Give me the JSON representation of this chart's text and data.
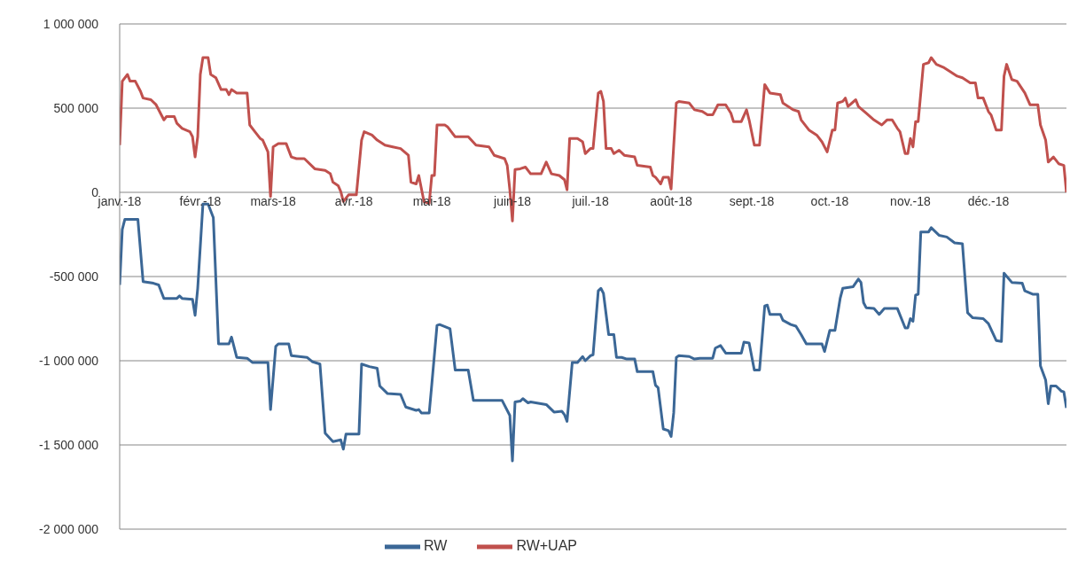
{
  "chart_data": {
    "type": "line",
    "grid": "y",
    "legend": "bottom",
    "marker": "none",
    "line_style": "solid",
    "xlim": [
      "2018-01-01",
      "2018-12-31"
    ],
    "xticks": [
      {
        "value": "2018-01-01",
        "label": "janv.-18"
      },
      {
        "value": "2018-02-01",
        "label": "févr.-18"
      },
      {
        "value": "2018-03-01",
        "label": "mars-18"
      },
      {
        "value": "2018-04-01",
        "label": "avr.-18"
      },
      {
        "value": "2018-05-01",
        "label": "mai-18"
      },
      {
        "value": "2018-06-01",
        "label": "juin-18"
      },
      {
        "value": "2018-07-01",
        "label": "juil.-18"
      },
      {
        "value": "2018-08-01",
        "label": "août-18"
      },
      {
        "value": "2018-09-01",
        "label": "sept.-18"
      },
      {
        "value": "2018-10-01",
        "label": "oct.-18"
      },
      {
        "value": "2018-11-01",
        "label": "nov.-18"
      },
      {
        "value": "2018-12-01",
        "label": "déc.-18"
      }
    ],
    "ylim": [
      -2000000,
      1000000
    ],
    "yticks": [
      {
        "value": -2000000,
        "label": "-2 000 000"
      },
      {
        "value": -1500000,
        "label": "-1 500 000"
      },
      {
        "value": -1000000,
        "label": "-1 000 000"
      },
      {
        "value": -500000,
        "label": "-500 000"
      },
      0,
      {
        "value": 500000,
        "label": "500 000"
      },
      {
        "value": 1000000,
        "label": "1 000 000"
      }
    ],
    "series": [
      {
        "name": "RW",
        "color": "#3b6796",
        "x": [
          "2018-01-01",
          "2018-01-02",
          "2018-01-03",
          "2018-01-08",
          "2018-01-10",
          "2018-01-14",
          "2018-01-16",
          "2018-01-18",
          "2018-01-23",
          "2018-01-24",
          "2018-01-25",
          "2018-01-29",
          "2018-01-30",
          "2018-01-31",
          "2018-02-02",
          "2018-02-04",
          "2018-02-06",
          "2018-02-08",
          "2018-02-12",
          "2018-02-13",
          "2018-02-15",
          "2018-02-19",
          "2018-02-21",
          "2018-02-27",
          "2018-02-28",
          "2018-03-02",
          "2018-03-03",
          "2018-03-07",
          "2018-03-08",
          "2018-03-14",
          "2018-03-16",
          "2018-03-19",
          "2018-03-21",
          "2018-03-24",
          "2018-03-27",
          "2018-03-28",
          "2018-03-29",
          "2018-04-03",
          "2018-04-04",
          "2018-04-07",
          "2018-04-10",
          "2018-04-11",
          "2018-04-14",
          "2018-04-19",
          "2018-04-21",
          "2018-04-25",
          "2018-04-26",
          "2018-04-27",
          "2018-04-30",
          "2018-05-01",
          "2018-05-03",
          "2018-05-04",
          "2018-05-08",
          "2018-05-10",
          "2018-05-15",
          "2018-05-17",
          "2018-05-28",
          "2018-05-31",
          "2018-06-01",
          "2018-06-02",
          "2018-06-04",
          "2018-06-05",
          "2018-06-07",
          "2018-06-08",
          "2018-06-14",
          "2018-06-17",
          "2018-06-20",
          "2018-06-21",
          "2018-06-22",
          "2018-06-24",
          "2018-06-26",
          "2018-06-28",
          "2018-06-29",
          "2018-07-01",
          "2018-07-02",
          "2018-07-04",
          "2018-07-05",
          "2018-07-06",
          "2018-07-08",
          "2018-07-10",
          "2018-07-11",
          "2018-07-13",
          "2018-07-15",
          "2018-07-18",
          "2018-07-19",
          "2018-07-25",
          "2018-07-26",
          "2018-07-27",
          "2018-07-29",
          "2018-07-31",
          "2018-08-01",
          "2018-08-02",
          "2018-08-03",
          "2018-08-04",
          "2018-08-08",
          "2018-08-10",
          "2018-08-12",
          "2018-08-17",
          "2018-08-18",
          "2018-08-20",
          "2018-08-22",
          "2018-08-28",
          "2018-08-29",
          "2018-08-31",
          "2018-09-02",
          "2018-09-04",
          "2018-09-06",
          "2018-09-07",
          "2018-09-08",
          "2018-09-12",
          "2018-09-13",
          "2018-09-16",
          "2018-09-18",
          "2018-09-20",
          "2018-09-22",
          "2018-09-28",
          "2018-09-29",
          "2018-10-01",
          "2018-10-03",
          "2018-10-05",
          "2018-10-06",
          "2018-10-10",
          "2018-10-12",
          "2018-10-13",
          "2018-10-14",
          "2018-10-15",
          "2018-10-18",
          "2018-10-20",
          "2018-10-22",
          "2018-10-27",
          "2018-10-30",
          "2018-10-31",
          "2018-11-01",
          "2018-11-02",
          "2018-11-03",
          "2018-11-04",
          "2018-11-05",
          "2018-11-08",
          "2018-11-09",
          "2018-11-12",
          "2018-11-15",
          "2018-11-18",
          "2018-11-21",
          "2018-11-23",
          "2018-11-25",
          "2018-11-29",
          "2018-12-01",
          "2018-12-04",
          "2018-12-06",
          "2018-12-07",
          "2018-12-10",
          "2018-12-14",
          "2018-12-15",
          "2018-12-18",
          "2018-12-20",
          "2018-12-21",
          "2018-12-23",
          "2018-12-24",
          "2018-12-25",
          "2018-12-27",
          "2018-12-29",
          "2018-12-30",
          "2018-12-31"
        ],
        "values": [
          -550000,
          -220000,
          -160000,
          -160000,
          -530000,
          -540000,
          -550000,
          -630000,
          -630000,
          -615000,
          -630000,
          -635000,
          -730000,
          -570000,
          -70000,
          -70000,
          -150000,
          -900000,
          -900000,
          -860000,
          -980000,
          -985000,
          -1010000,
          -1010000,
          -1290000,
          -915000,
          -900000,
          -900000,
          -970000,
          -980000,
          -1005000,
          -1020000,
          -1430000,
          -1480000,
          -1470000,
          -1525000,
          -1435000,
          -1435000,
          -1020000,
          -1035000,
          -1045000,
          -1150000,
          -1195000,
          -1200000,
          -1275000,
          -1295000,
          -1290000,
          -1310000,
          -1310000,
          -1140000,
          -790000,
          -785000,
          -810000,
          -1055000,
          -1055000,
          -1235000,
          -1235000,
          -1325000,
          -1595000,
          -1245000,
          -1240000,
          -1225000,
          -1250000,
          -1245000,
          -1260000,
          -1305000,
          -1300000,
          -1320000,
          -1360000,
          -1010000,
          -1010000,
          -975000,
          -1000000,
          -970000,
          -965000,
          -585000,
          -570000,
          -600000,
          -845000,
          -845000,
          -980000,
          -980000,
          -990000,
          -990000,
          -1065000,
          -1065000,
          -1145000,
          -1160000,
          -1405000,
          -1415000,
          -1450000,
          -1310000,
          -980000,
          -970000,
          -975000,
          -990000,
          -985000,
          -985000,
          -925000,
          -910000,
          -955000,
          -955000,
          -890000,
          -895000,
          -1055000,
          -1055000,
          -675000,
          -670000,
          -725000,
          -725000,
          -760000,
          -785000,
          -795000,
          -845000,
          -900000,
          -900000,
          -945000,
          -820000,
          -820000,
          -630000,
          -570000,
          -560000,
          -515000,
          -535000,
          -655000,
          -685000,
          -690000,
          -725000,
          -690000,
          -690000,
          -805000,
          -805000,
          -750000,
          -765000,
          -610000,
          -605000,
          -235000,
          -235000,
          -210000,
          -255000,
          -265000,
          -300000,
          -305000,
          -715000,
          -745000,
          -750000,
          -780000,
          -880000,
          -885000,
          -480000,
          -535000,
          -540000,
          -585000,
          -605000,
          -605000,
          -1030000,
          -1115000,
          -1255000,
          -1150000,
          -1150000,
          -1180000,
          -1185000,
          -1280000
        ]
      },
      {
        "name": "RW+UAP",
        "color": "#c0504d",
        "x": [
          "2018-01-01",
          "2018-01-02",
          "2018-01-04",
          "2018-01-05",
          "2018-01-07",
          "2018-01-09",
          "2018-01-10",
          "2018-01-13",
          "2018-01-15",
          "2018-01-18",
          "2018-01-19",
          "2018-01-22",
          "2018-01-23",
          "2018-01-25",
          "2018-01-28",
          "2018-01-29",
          "2018-01-30",
          "2018-01-31",
          "2018-02-01",
          "2018-02-02",
          "2018-02-04",
          "2018-02-05",
          "2018-02-07",
          "2018-02-09",
          "2018-02-11",
          "2018-02-12",
          "2018-02-13",
          "2018-02-15",
          "2018-02-19",
          "2018-02-20",
          "2018-02-22",
          "2018-02-24",
          "2018-02-25",
          "2018-02-27",
          "2018-02-28",
          "2018-03-01",
          "2018-03-03",
          "2018-03-06",
          "2018-03-08",
          "2018-03-10",
          "2018-03-13",
          "2018-03-17",
          "2018-03-21",
          "2018-03-23",
          "2018-03-24",
          "2018-03-26",
          "2018-03-27",
          "2018-03-28",
          "2018-03-30",
          "2018-04-02",
          "2018-04-04",
          "2018-04-05",
          "2018-04-08",
          "2018-04-10",
          "2018-04-13",
          "2018-04-16",
          "2018-04-19",
          "2018-04-22",
          "2018-04-23",
          "2018-04-25",
          "2018-04-26",
          "2018-04-28",
          "2018-04-30",
          "2018-05-01",
          "2018-05-02",
          "2018-05-03",
          "2018-05-06",
          "2018-05-07",
          "2018-05-10",
          "2018-05-15",
          "2018-05-18",
          "2018-05-23",
          "2018-05-25",
          "2018-05-29",
          "2018-05-30",
          "2018-05-31",
          "2018-06-01",
          "2018-06-02",
          "2018-06-04",
          "2018-06-06",
          "2018-06-08",
          "2018-06-12",
          "2018-06-14",
          "2018-06-16",
          "2018-06-19",
          "2018-06-21",
          "2018-06-22",
          "2018-06-23",
          "2018-06-26",
          "2018-06-28",
          "2018-06-29",
          "2018-07-01",
          "2018-07-02",
          "2018-07-04",
          "2018-07-05",
          "2018-07-06",
          "2018-07-07",
          "2018-07-09",
          "2018-07-10",
          "2018-07-12",
          "2018-07-14",
          "2018-07-18",
          "2018-07-19",
          "2018-07-24",
          "2018-07-25",
          "2018-07-26",
          "2018-07-28",
          "2018-07-29",
          "2018-07-31",
          "2018-08-01",
          "2018-08-03",
          "2018-08-04",
          "2018-08-08",
          "2018-08-10",
          "2018-08-13",
          "2018-08-15",
          "2018-08-17",
          "2018-08-19",
          "2018-08-22",
          "2018-08-24",
          "2018-08-25",
          "2018-08-28",
          "2018-08-30",
          "2018-08-31",
          "2018-09-02",
          "2018-09-04",
          "2018-09-06",
          "2018-09-08",
          "2018-09-12",
          "2018-09-13",
          "2018-09-17",
          "2018-09-19",
          "2018-09-20",
          "2018-09-23",
          "2018-09-26",
          "2018-09-28",
          "2018-09-30",
          "2018-10-02",
          "2018-10-03",
          "2018-10-04",
          "2018-10-06",
          "2018-10-07",
          "2018-10-08",
          "2018-10-11",
          "2018-10-12",
          "2018-10-15",
          "2018-10-18",
          "2018-10-21",
          "2018-10-23",
          "2018-10-25",
          "2018-10-27",
          "2018-10-28",
          "2018-10-30",
          "2018-10-31",
          "2018-11-01",
          "2018-11-02",
          "2018-11-03",
          "2018-11-04",
          "2018-11-06",
          "2018-11-08",
          "2018-11-09",
          "2018-11-11",
          "2018-11-14",
          "2018-11-16",
          "2018-11-19",
          "2018-11-21",
          "2018-11-24",
          "2018-11-26",
          "2018-11-27",
          "2018-11-29",
          "2018-12-01",
          "2018-12-02",
          "2018-12-04",
          "2018-12-06",
          "2018-12-07",
          "2018-12-08",
          "2018-12-10",
          "2018-12-12",
          "2018-12-15",
          "2018-12-17",
          "2018-12-20",
          "2018-12-21",
          "2018-12-23",
          "2018-12-24",
          "2018-12-26",
          "2018-12-28",
          "2018-12-30",
          "2018-12-31"
        ],
        "values": [
          280000,
          660000,
          700000,
          660000,
          660000,
          600000,
          560000,
          550000,
          520000,
          430000,
          450000,
          450000,
          410000,
          380000,
          360000,
          330000,
          210000,
          330000,
          700000,
          800000,
          800000,
          700000,
          680000,
          610000,
          610000,
          580000,
          610000,
          590000,
          590000,
          400000,
          360000,
          320000,
          310000,
          240000,
          -25000,
          270000,
          290000,
          290000,
          210000,
          200000,
          200000,
          140000,
          130000,
          110000,
          60000,
          40000,
          5000,
          -55000,
          -15000,
          -15000,
          310000,
          360000,
          340000,
          310000,
          280000,
          270000,
          260000,
          220000,
          60000,
          50000,
          100000,
          -55000,
          -65000,
          100000,
          100000,
          400000,
          400000,
          390000,
          330000,
          330000,
          280000,
          270000,
          220000,
          200000,
          160000,
          15000,
          -170000,
          135000,
          140000,
          150000,
          110000,
          110000,
          180000,
          110000,
          100000,
          75000,
          15000,
          320000,
          320000,
          300000,
          230000,
          260000,
          260000,
          590000,
          600000,
          540000,
          260000,
          260000,
          230000,
          250000,
          220000,
          210000,
          160000,
          150000,
          100000,
          90000,
          50000,
          90000,
          90000,
          20000,
          530000,
          540000,
          530000,
          490000,
          480000,
          460000,
          460000,
          520000,
          520000,
          470000,
          420000,
          420000,
          490000,
          430000,
          280000,
          280000,
          640000,
          590000,
          580000,
          530000,
          490000,
          480000,
          430000,
          370000,
          340000,
          300000,
          240000,
          370000,
          370000,
          530000,
          540000,
          560000,
          510000,
          550000,
          510000,
          470000,
          430000,
          400000,
          430000,
          430000,
          380000,
          360000,
          230000,
          230000,
          320000,
          270000,
          420000,
          420000,
          760000,
          770000,
          800000,
          760000,
          740000,
          720000,
          690000,
          680000,
          650000,
          650000,
          560000,
          560000,
          480000,
          460000,
          370000,
          370000,
          690000,
          760000,
          670000,
          660000,
          590000,
          520000,
          520000,
          400000,
          310000,
          180000,
          210000,
          170000,
          160000,
          0
        ]
      }
    ]
  }
}
